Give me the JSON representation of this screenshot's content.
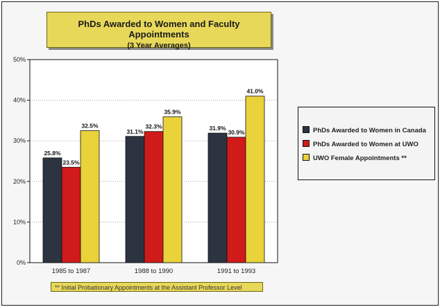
{
  "header": {
    "title": "PhDs Awarded to Women and Faculty Appointments",
    "subtitle": "(3 Year Averages)"
  },
  "footnote": "** Initial Probationary Appointments at the Assistant Professor Level",
  "chart_data": {
    "type": "bar",
    "title": "PhDs Awarded to Women and Faculty Appointments",
    "subtitle": "(3 Year Averages)",
    "categories": [
      "1985 to 1987",
      "1988 to 1990",
      "1991 to 1993"
    ],
    "series": [
      {
        "name": "PhDs Awarded to Women in Canada",
        "values": [
          25.8,
          31.1,
          31.9
        ],
        "labels": [
          "25.8%",
          "31.1%",
          "31.9%"
        ],
        "color": "#2b3440"
      },
      {
        "name": "PhDs Awarded to Women at UWO",
        "values": [
          23.5,
          32.3,
          30.9
        ],
        "labels": [
          "23.5%",
          "32.3%",
          "30.9%"
        ],
        "color": "#d11a1a"
      },
      {
        "name": "UWO Female Appointments **",
        "values": [
          32.5,
          35.9,
          41.0
        ],
        "labels": [
          "32.5%",
          "35.9%",
          "41.0%"
        ],
        "color": "#e9d23a"
      }
    ],
    "ylim": [
      0,
      50
    ],
    "yticks": [
      "0%",
      "10%",
      "20%",
      "30%",
      "40%",
      "50%"
    ],
    "grid": true,
    "legend_position": "right"
  }
}
